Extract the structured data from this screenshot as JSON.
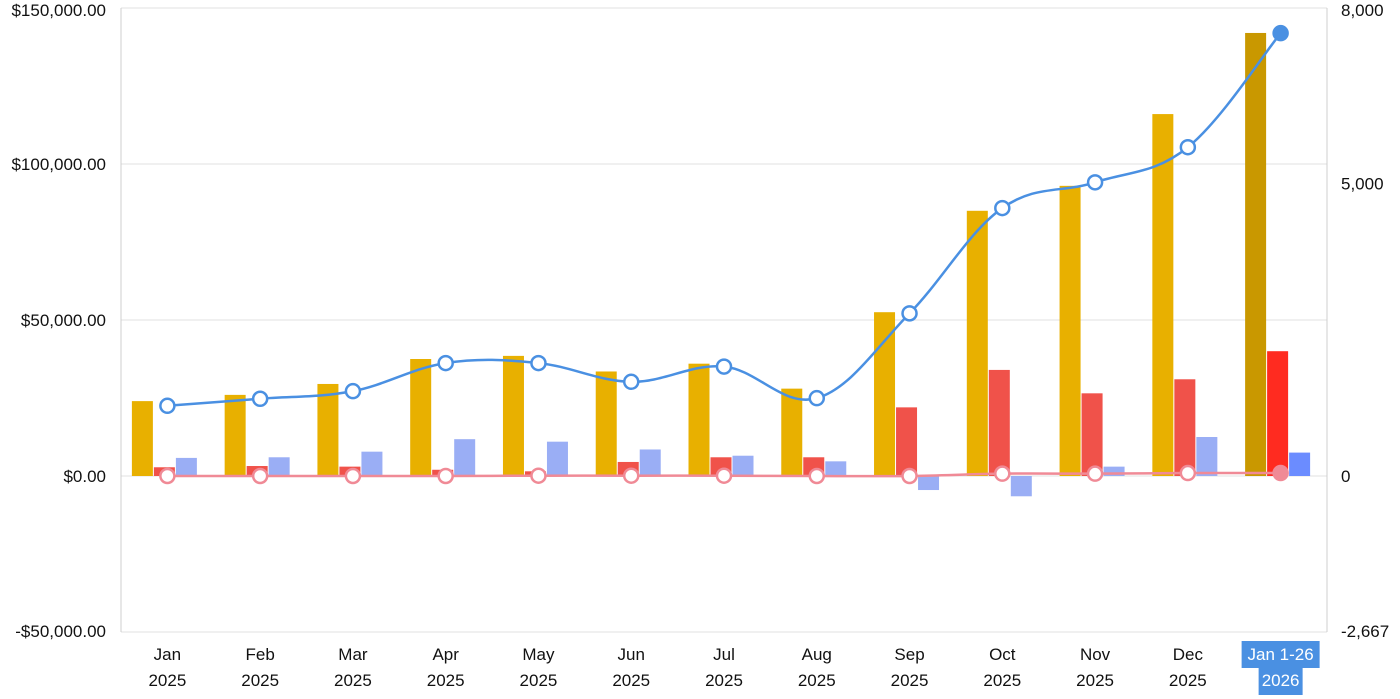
{
  "chart_data": {
    "type": "bar",
    "categories": [
      {
        "month": "Jan",
        "year": "2025"
      },
      {
        "month": "Feb",
        "year": "2025"
      },
      {
        "month": "Mar",
        "year": "2025"
      },
      {
        "month": "Apr",
        "year": "2025"
      },
      {
        "month": "May",
        "year": "2025"
      },
      {
        "month": "Jun",
        "year": "2025"
      },
      {
        "month": "Jul",
        "year": "2025"
      },
      {
        "month": "Aug",
        "year": "2025"
      },
      {
        "month": "Sep",
        "year": "2025"
      },
      {
        "month": "Oct",
        "year": "2025"
      },
      {
        "month": "Nov",
        "year": "2025"
      },
      {
        "month": "Dec",
        "year": "2025"
      },
      {
        "month": "Jan 1-26",
        "year": "2026"
      }
    ],
    "selected_index": 12,
    "left_axis": {
      "min": -50000,
      "max": 150000,
      "ticks": [
        {
          "value": 150000,
          "label": "$150,000.00"
        },
        {
          "value": 100000,
          "label": "$100,000.00"
        },
        {
          "value": 50000,
          "label": "$50,000.00"
        },
        {
          "value": 0,
          "label": "$0.00"
        },
        {
          "value": -50000,
          "label": "-$50,000.00"
        }
      ]
    },
    "right_axis": {
      "min": -2667,
      "max": 8000,
      "ticks": [
        {
          "value": 8000,
          "label": "8,000"
        },
        {
          "value": 5000,
          "label": "5,000"
        },
        {
          "value": 0,
          "label": "0"
        },
        {
          "value": -2667,
          "label": "-2,667"
        }
      ]
    },
    "bar_series": [
      {
        "color": "#e8b000",
        "selected_color": "#c99800",
        "values": [
          24000,
          26000,
          29500,
          37500,
          38500,
          33500,
          36000,
          28000,
          52500,
          85000,
          93000,
          116000,
          142000
        ]
      },
      {
        "color": "#f0524a",
        "selected_color": "#ff2b20",
        "values": [
          2800,
          3200,
          3000,
          2000,
          1500,
          4500,
          6000,
          6000,
          22000,
          34000,
          26500,
          31000,
          40000
        ]
      },
      {
        "color": "#9aaef5",
        "selected_color": "#6b8cff",
        "values": [
          5800,
          6000,
          7800,
          11800,
          11000,
          8500,
          6500,
          4700,
          -4500,
          -6500,
          3000,
          12500,
          7500
        ]
      }
    ],
    "line_series": [
      {
        "color": "#4a90e2",
        "axis": "right",
        "values": [
          1200,
          1320,
          1450,
          1930,
          1930,
          1610,
          1870,
          1330,
          2780,
          4580,
          5020,
          5620,
          7570
        ]
      },
      {
        "color": "#f08a96",
        "axis": "right",
        "values": [
          0,
          0,
          0,
          0,
          5,
          5,
          5,
          0,
          0,
          40,
          40,
          50,
          50
        ]
      }
    ],
    "grid": true
  },
  "colors": {
    "grid": "#e0e0e0",
    "axis_line": "#cfcfcf",
    "selected_label_bg": "#4a90e2"
  }
}
